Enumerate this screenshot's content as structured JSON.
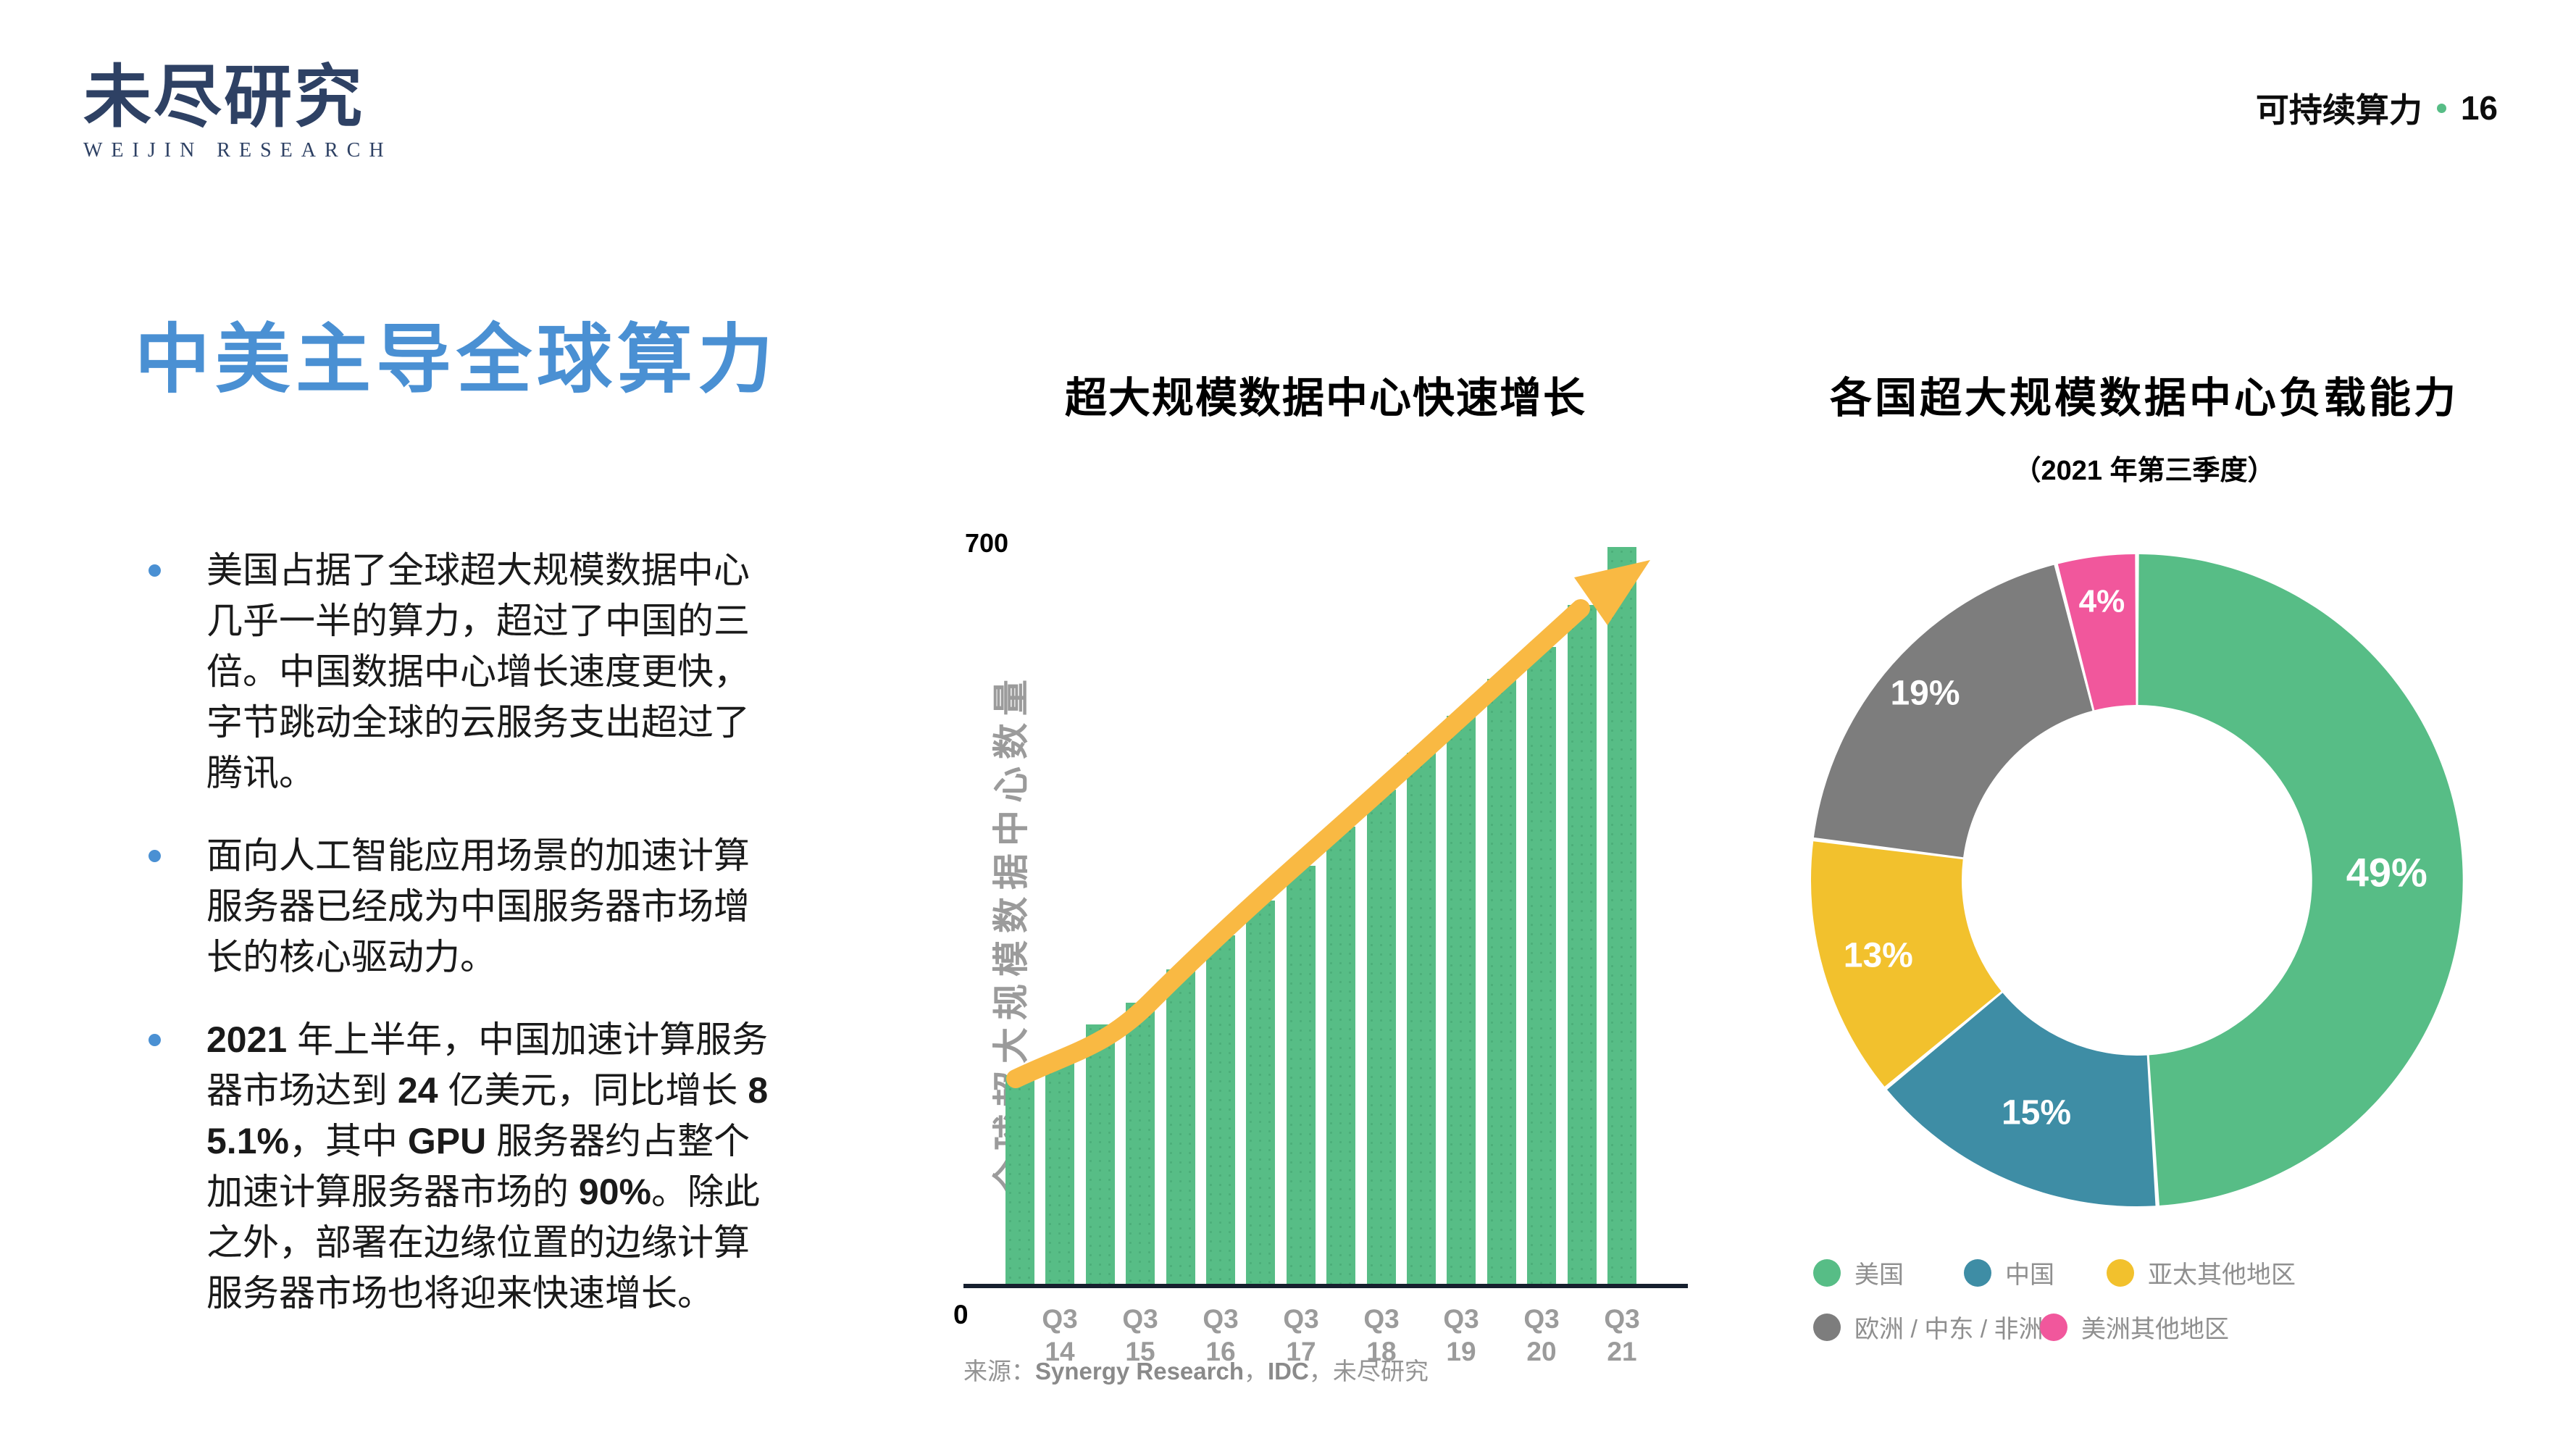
{
  "colors": {
    "accent_blue": "#4A90D3",
    "green": "#57BD86",
    "teal": "#3E8DA5",
    "yellow": "#F2C12D",
    "gray": "#7D7D7D",
    "pink": "#F1579C",
    "orange": "#F9B943",
    "navy": "#2E4164",
    "axis": "#16202E"
  },
  "brand": {
    "logo_cn": "未尽研究",
    "logo_en": "WEIJIN RESEARCH"
  },
  "header": {
    "section": "可持续算力",
    "page_number": "16"
  },
  "left_panel": {
    "title": "中美主导全球算力",
    "bullets": [
      {
        "segments": [
          {
            "text": "美国占据了全球超大规模数据中心几乎一半的算力，超过了中国的三倍。中国数据中心增长速度更快，字节跳动全球的云服务支出超过了腾讯。",
            "bold": false
          }
        ]
      },
      {
        "segments": [
          {
            "text": "面向人工智能应用场景的加速计算服务器已经成为中国服务器市场增长的核心驱动力。",
            "bold": false
          }
        ]
      },
      {
        "segments": [
          {
            "text": "2021",
            "bold": true
          },
          {
            "text": " 年上半年，中国加速计算服务器市场达到 ",
            "bold": false
          },
          {
            "text": "24",
            "bold": true
          },
          {
            "text": " 亿美元，同比增长 ",
            "bold": false
          },
          {
            "text": "85.1%",
            "bold": true
          },
          {
            "text": "，其中 ",
            "bold": false
          },
          {
            "text": "GPU",
            "bold": true
          },
          {
            "text": " 服务器约占整个加速计算服务器市场的 ",
            "bold": false
          },
          {
            "text": "90%",
            "bold": true
          },
          {
            "text": "。除此之外，部署在边缘位置的边缘计算服务器市场也将迎来快速增长。",
            "bold": false
          }
        ]
      }
    ]
  },
  "chart_data": [
    {
      "type": "bar",
      "title": "超大规模数据中心快速增长",
      "ylabel": "全球超大规模数据中心数量",
      "ylim": [
        0,
        700
      ],
      "ytick_labels": [
        "0",
        "700"
      ],
      "bar_color": "#57BD86",
      "trend_arrow_color": "#F9B943",
      "x": [
        "",
        "Q3 14",
        "",
        "Q3 15",
        "",
        "Q3 16",
        "",
        "Q3 17",
        "",
        "Q3 18",
        "",
        "Q3 19",
        "",
        "Q3 20",
        "",
        "Q3 21"
      ],
      "values": [
        200,
        215,
        248,
        268,
        300,
        332,
        365,
        398,
        435,
        470,
        505,
        540,
        575,
        605,
        645,
        700
      ],
      "grid": false,
      "annotation": "upward growth arrow along bar tops"
    },
    {
      "type": "pie",
      "donut": true,
      "title": "各国超大规模数据中心负载能力",
      "subtitle": "（2021 年第三季度）",
      "labels": [
        "美国",
        "中国",
        "亚太其他地区",
        "欧洲 / 中东 / 非洲",
        "美洲其他地区"
      ],
      "values": [
        49,
        15,
        13,
        19,
        4
      ],
      "unit": "%",
      "colors": [
        "#57BD86",
        "#3E8DA5",
        "#F2C12D",
        "#7D7D7D",
        "#F1579C"
      ],
      "legend_position": "bottom"
    }
  ],
  "source": {
    "segments": [
      {
        "text": "来源：",
        "bold": false
      },
      {
        "text": "Synergy Research",
        "bold": true
      },
      {
        "text": "，",
        "bold": false
      },
      {
        "text": "IDC",
        "bold": true
      },
      {
        "text": "，未尽研究",
        "bold": false
      }
    ]
  }
}
